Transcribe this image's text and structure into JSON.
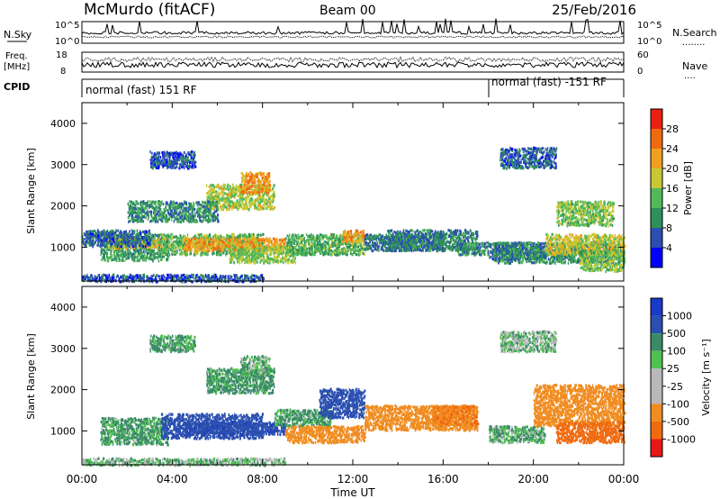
{
  "header": {
    "station": "McMurdo (fitACF)",
    "beam": "Beam 00",
    "date": "25/Feb/2016"
  },
  "left_labels": {
    "nsky": "N.Sky",
    "freq_line1": "Freq.",
    "freq_line2": "[MHz]",
    "cpid": "CPID"
  },
  "right_labels": {
    "nsearch": "N.Search",
    "nsearch_dots": "........",
    "nave": "Nave",
    "nave_dots": "...."
  },
  "cpid_segments": [
    {
      "label": "normal (fast) 151 RF",
      "start_hour": 0
    },
    {
      "label": "normal (fast) -151 RF",
      "start_hour": 18
    }
  ],
  "colors": {
    "power_scale": [
      "#0000ff",
      "#2a4fb0",
      "#2e8f5a",
      "#52b85a",
      "#c8c832",
      "#f0a020",
      "#f06a10",
      "#e82010"
    ],
    "velocity_scale": [
      "#e81818",
      "#f06a10",
      "#f08c20",
      "#b8b8b8",
      "#b8b8b8",
      "#50c050",
      "#3a8a68",
      "#2a4fb0",
      "#1a3ac8"
    ]
  },
  "chart_data": [
    {
      "type": "line",
      "title": "N.Sky / N.Search",
      "ylabel": "N.Sky",
      "y2label": "N.Search",
      "yticks": [
        "10^5",
        "10^0"
      ],
      "y2ticks": [
        "10^5",
        "10^0"
      ],
      "x_unit": "hour UT",
      "xlim": [
        0,
        24
      ]
    },
    {
      "type": "line",
      "title": "Frequency / Nave",
      "ylabel": "Freq. [MHz]",
      "y2label": "Nave",
      "yticks": [
        18,
        8
      ],
      "y2ticks": [
        60,
        0
      ],
      "ylim": [
        8,
        18
      ],
      "y2lim": [
        0,
        60
      ],
      "x_unit": "hour UT",
      "xlim": [
        0,
        24
      ]
    },
    {
      "type": "heatmap",
      "title": "Power",
      "ylabel": "Slant Range [km]",
      "xlabel": "Time UT",
      "xlim": [
        0,
        24
      ],
      "ylim": [
        180,
        4500
      ],
      "yticks": [
        1000,
        2000,
        3000,
        4000
      ],
      "colorbar_label": "Power [dB]",
      "colorbar_range": [
        0,
        32
      ],
      "colorbar_ticks": [
        4,
        8,
        12,
        16,
        20,
        24,
        28
      ],
      "regions": [
        {
          "t": [
            0.0,
            8.0
          ],
          "r": [
            150,
            320
          ],
          "v": 6
        },
        {
          "t": [
            0.8,
            3.8
          ],
          "r": [
            650,
            1300
          ],
          "v": 11
        },
        {
          "t": [
            1.0,
            3.5
          ],
          "r": [
            950,
            1200
          ],
          "v": 18
        },
        {
          "t": [
            3.5,
            8.0
          ],
          "r": [
            800,
            1300
          ],
          "v": 14
        },
        {
          "t": [
            4.5,
            9.0
          ],
          "r": [
            900,
            1200
          ],
          "v": 22
        },
        {
          "t": [
            6.5,
            9.5
          ],
          "r": [
            600,
            1000
          ],
          "v": 16
        },
        {
          "t": [
            5.5,
            8.5
          ],
          "r": [
            1900,
            2500
          ],
          "v": 17
        },
        {
          "t": [
            7.0,
            8.3
          ],
          "r": [
            2300,
            2800
          ],
          "v": 23
        },
        {
          "t": [
            2.0,
            6.0
          ],
          "r": [
            1600,
            2100
          ],
          "v": 10
        },
        {
          "t": [
            9.0,
            12.5
          ],
          "r": [
            800,
            1300
          ],
          "v": 13
        },
        {
          "t": [
            11.5,
            12.5
          ],
          "r": [
            1100,
            1400
          ],
          "v": 22
        },
        {
          "t": [
            12.5,
            16.0
          ],
          "r": [
            900,
            1300
          ],
          "v": 8
        },
        {
          "t": [
            13.5,
            17.5
          ],
          "r": [
            900,
            1400
          ],
          "v": 9
        },
        {
          "t": [
            16.5,
            18.0
          ],
          "r": [
            800,
            1100
          ],
          "v": 10
        },
        {
          "t": [
            18.0,
            20.5
          ],
          "r": [
            700,
            1100
          ],
          "v": 7
        },
        {
          "t": [
            18.2,
            24.0
          ],
          "r": [
            600,
            1100
          ],
          "v": 10
        },
        {
          "t": [
            20.5,
            24.0
          ],
          "r": [
            800,
            1300
          ],
          "v": 18
        },
        {
          "t": [
            21.0,
            23.5
          ],
          "r": [
            1500,
            2100
          ],
          "v": 15
        },
        {
          "t": [
            22.0,
            24.0
          ],
          "r": [
            400,
            900
          ],
          "v": 15
        },
        {
          "t": [
            0.0,
            3.0
          ],
          "r": [
            1000,
            1400
          ],
          "v": 7
        },
        {
          "t": [
            18.5,
            21.0
          ],
          "r": [
            2900,
            3400
          ],
          "v": 7
        },
        {
          "t": [
            3.0,
            5.0
          ],
          "r": [
            2900,
            3300
          ],
          "v": 6
        }
      ]
    },
    {
      "type": "heatmap",
      "title": "Velocity",
      "ylabel": "Slant Range [km]",
      "xlabel": "Time UT",
      "xlim": [
        0,
        24
      ],
      "ylim": [
        180,
        4500
      ],
      "yticks": [
        1000,
        2000,
        3000,
        4000
      ],
      "xticks": [
        "00:00",
        "04:00",
        "08:00",
        "12:00",
        "16:00",
        "20:00",
        "00:00"
      ],
      "colorbar_label": "Velocity [m s⁻¹]",
      "colorbar_ticks": [
        1000,
        500,
        100,
        25,
        -25,
        -100,
        -500,
        -1000
      ],
      "regions": [
        {
          "t": [
            0.0,
            9.0
          ],
          "r": [
            150,
            320
          ],
          "v": 30
        },
        {
          "t": [
            0.8,
            3.8
          ],
          "r": [
            650,
            1300
          ],
          "v": 150
        },
        {
          "t": [
            3.5,
            8.0
          ],
          "r": [
            800,
            1400
          ],
          "v": 800
        },
        {
          "t": [
            4.5,
            9.0
          ],
          "r": [
            900,
            1200
          ],
          "v": 900
        },
        {
          "t": [
            5.5,
            8.5
          ],
          "r": [
            1900,
            2500
          ],
          "v": 150
        },
        {
          "t": [
            7.0,
            8.3
          ],
          "r": [
            2300,
            2800
          ],
          "v": 100
        },
        {
          "t": [
            8.5,
            11.0
          ],
          "r": [
            1100,
            1500
          ],
          "v": 150
        },
        {
          "t": [
            10.5,
            12.5
          ],
          "r": [
            1300,
            2000
          ],
          "v": 700
        },
        {
          "t": [
            9.0,
            12.5
          ],
          "r": [
            700,
            1100
          ],
          "v": -300
        },
        {
          "t": [
            12.5,
            17.5
          ],
          "r": [
            1000,
            1600
          ],
          "v": -300
        },
        {
          "t": [
            15.5,
            17.5
          ],
          "r": [
            1100,
            1600
          ],
          "v": -500
        },
        {
          "t": [
            18.0,
            20.5
          ],
          "r": [
            700,
            1100
          ],
          "v": 120
        },
        {
          "t": [
            20.0,
            24.0
          ],
          "r": [
            1100,
            2100
          ],
          "v": -300
        },
        {
          "t": [
            21.0,
            24.0
          ],
          "r": [
            700,
            1200
          ],
          "v": -700
        },
        {
          "t": [
            18.5,
            21.0
          ],
          "r": [
            2900,
            3400
          ],
          "v": 30
        },
        {
          "t": [
            3.0,
            5.0
          ],
          "r": [
            2900,
            3300
          ],
          "v": 150
        }
      ]
    }
  ]
}
